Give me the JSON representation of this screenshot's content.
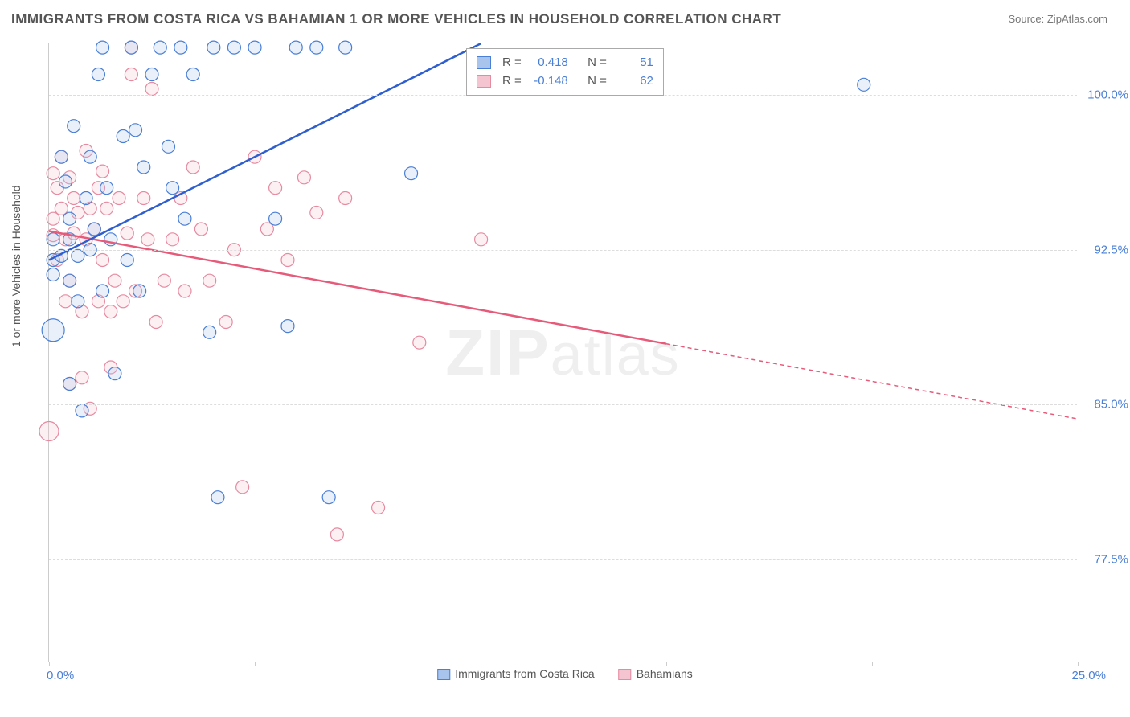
{
  "header": {
    "title": "IMMIGRANTS FROM COSTA RICA VS BAHAMIAN 1 OR MORE VEHICLES IN HOUSEHOLD CORRELATION CHART",
    "source_prefix": "Source: ",
    "source": "ZipAtlas.com"
  },
  "watermark": {
    "zip": "ZIP",
    "atlas": "atlas"
  },
  "ylabel": "1 or more Vehicles in Household",
  "chart": {
    "type": "scatter",
    "xlim": [
      0,
      25
    ],
    "ylim": [
      72.5,
      102.5
    ],
    "xtick_labels": [
      "0.0%",
      "25.0%"
    ],
    "ytick_positions": [
      77.5,
      85.0,
      92.5,
      100.0
    ],
    "ytick_labels": [
      "77.5%",
      "85.0%",
      "92.5%",
      "100.0%"
    ],
    "xtick_positions": [
      0,
      5,
      10,
      15,
      20,
      25
    ],
    "grid_color": "#dddddd",
    "axis_color": "#cccccc",
    "background_color": "#ffffff",
    "marker_radius": 8,
    "marker_radius_large": 14,
    "marker_stroke_width": 1.2,
    "marker_fill_opacity": 0.25,
    "trend_line_width": 2.5,
    "trend_dash": "5,4"
  },
  "series": {
    "a": {
      "label": "Immigrants from Costa Rica",
      "color_line": "#2f5fcf",
      "color_marker_stroke": "#4a7fd6",
      "color_marker_fill": "#a8c3ec",
      "R": "0.418",
      "N": "51",
      "trend": {
        "x1": 0,
        "y1": 92.0,
        "x2": 10.5,
        "y2": 102.5,
        "solid_end_x": 10.5
      },
      "points": [
        [
          0.1,
          92.0
        ],
        [
          0.1,
          93.0
        ],
        [
          0.1,
          91.3
        ],
        [
          0.1,
          88.6,
          14
        ],
        [
          0.3,
          97.0
        ],
        [
          0.3,
          92.2
        ],
        [
          0.4,
          95.8
        ],
        [
          0.5,
          94.0
        ],
        [
          0.5,
          91.0
        ],
        [
          0.5,
          86.0
        ],
        [
          0.5,
          93.0
        ],
        [
          0.6,
          98.5
        ],
        [
          0.7,
          90.0
        ],
        [
          0.7,
          92.2
        ],
        [
          0.8,
          84.7
        ],
        [
          0.9,
          95.0
        ],
        [
          1.0,
          97.0
        ],
        [
          1.0,
          92.5
        ],
        [
          1.1,
          93.5
        ],
        [
          1.2,
          101.0
        ],
        [
          1.3,
          90.5
        ],
        [
          1.3,
          102.3
        ],
        [
          1.4,
          95.5
        ],
        [
          1.5,
          93.0
        ],
        [
          1.6,
          86.5
        ],
        [
          1.8,
          98.0
        ],
        [
          1.9,
          92.0
        ],
        [
          2.0,
          102.3
        ],
        [
          2.1,
          98.3
        ],
        [
          2.2,
          90.5
        ],
        [
          2.3,
          96.5
        ],
        [
          2.5,
          101.0
        ],
        [
          2.7,
          102.3
        ],
        [
          2.9,
          97.5
        ],
        [
          3.0,
          95.5
        ],
        [
          3.2,
          102.3
        ],
        [
          3.3,
          94.0
        ],
        [
          3.5,
          101.0
        ],
        [
          3.9,
          88.5
        ],
        [
          4.0,
          102.3
        ],
        [
          4.1,
          80.5
        ],
        [
          4.5,
          102.3
        ],
        [
          5.0,
          102.3
        ],
        [
          5.5,
          94.0
        ],
        [
          5.8,
          88.8
        ],
        [
          6.0,
          102.3
        ],
        [
          6.5,
          102.3
        ],
        [
          6.8,
          80.5
        ],
        [
          7.2,
          102.3
        ],
        [
          8.8,
          96.2
        ],
        [
          19.8,
          100.5
        ]
      ]
    },
    "b": {
      "label": "Bahamians",
      "color_line": "#e65a7a",
      "color_marker_stroke": "#e68aa0",
      "color_marker_fill": "#f4c4d0",
      "R": "-0.148",
      "N": "62",
      "trend": {
        "x1": 0,
        "y1": 93.4,
        "x2": 25,
        "y2": 84.3,
        "solid_end_x": 15.0
      },
      "points": [
        [
          0.0,
          83.7,
          12
        ],
        [
          0.1,
          94.0
        ],
        [
          0.1,
          96.2
        ],
        [
          0.1,
          93.2
        ],
        [
          0.2,
          95.5
        ],
        [
          0.2,
          92.0
        ],
        [
          0.3,
          97.0
        ],
        [
          0.3,
          94.5
        ],
        [
          0.4,
          93.0
        ],
        [
          0.4,
          90.0
        ],
        [
          0.5,
          96.0
        ],
        [
          0.5,
          91.0
        ],
        [
          0.5,
          86.0
        ],
        [
          0.6,
          93.3
        ],
        [
          0.6,
          95.0
        ],
        [
          0.7,
          94.3
        ],
        [
          0.8,
          86.3
        ],
        [
          0.8,
          89.5
        ],
        [
          0.9,
          97.3
        ],
        [
          0.9,
          93.0
        ],
        [
          1.0,
          94.5
        ],
        [
          1.0,
          84.8
        ],
        [
          1.1,
          93.5
        ],
        [
          1.2,
          95.5
        ],
        [
          1.2,
          90.0
        ],
        [
          1.3,
          96.3
        ],
        [
          1.3,
          92.0
        ],
        [
          1.4,
          94.5
        ],
        [
          1.5,
          89.5
        ],
        [
          1.5,
          86.8
        ],
        [
          1.6,
          91.0
        ],
        [
          1.7,
          95.0
        ],
        [
          1.8,
          90.0
        ],
        [
          1.9,
          93.3
        ],
        [
          2.0,
          102.3
        ],
        [
          2.0,
          101.0
        ],
        [
          2.1,
          90.5
        ],
        [
          2.3,
          95.0
        ],
        [
          2.4,
          93.0
        ],
        [
          2.5,
          100.3
        ],
        [
          2.6,
          89.0
        ],
        [
          2.8,
          91.0
        ],
        [
          3.0,
          93.0
        ],
        [
          3.2,
          95.0
        ],
        [
          3.3,
          90.5
        ],
        [
          3.5,
          96.5
        ],
        [
          3.7,
          93.5
        ],
        [
          3.9,
          91.0
        ],
        [
          4.3,
          89.0
        ],
        [
          4.5,
          92.5
        ],
        [
          4.7,
          81.0
        ],
        [
          5.0,
          97.0
        ],
        [
          5.3,
          93.5
        ],
        [
          5.5,
          95.5
        ],
        [
          5.8,
          92.0
        ],
        [
          6.2,
          96.0
        ],
        [
          6.5,
          94.3
        ],
        [
          7.0,
          78.7
        ],
        [
          7.2,
          95.0
        ],
        [
          8.0,
          80.0
        ],
        [
          9.0,
          88.0
        ],
        [
          10.5,
          93.0
        ]
      ]
    }
  },
  "legend_labels": {
    "R_prefix": "R =",
    "N_prefix": "N ="
  },
  "colors": {
    "text_muted": "#555555",
    "text_axis": "#4a7fd6"
  }
}
